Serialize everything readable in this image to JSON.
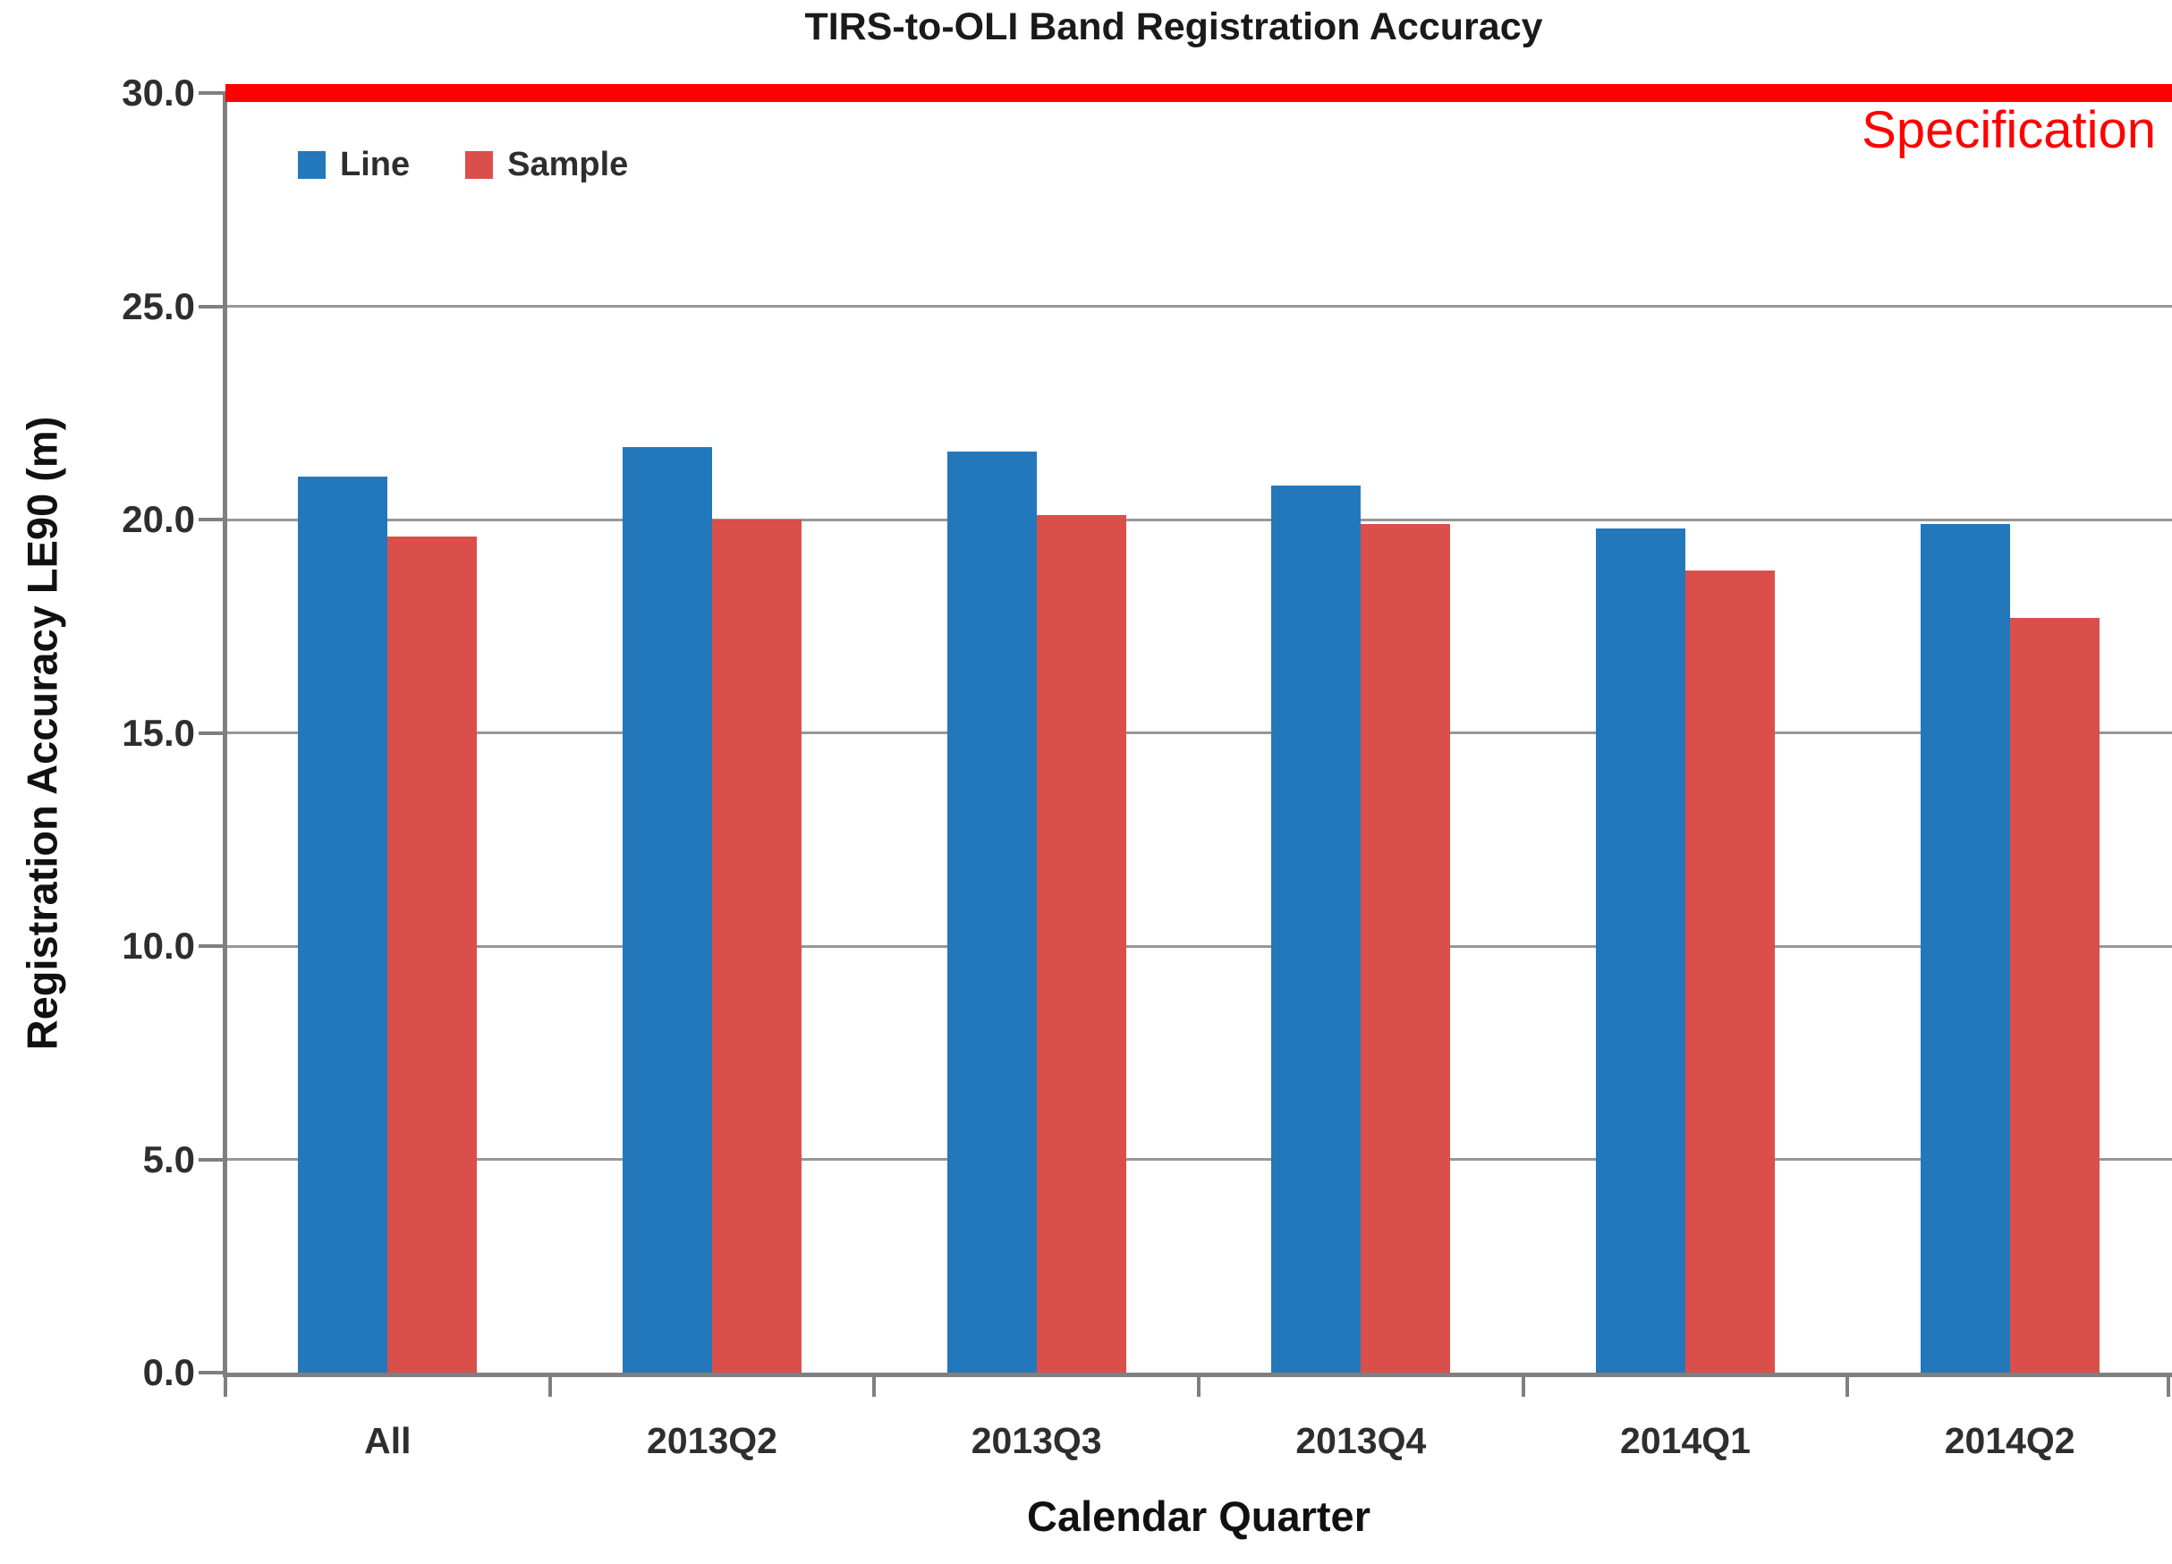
{
  "figure": {
    "title": "TIRS-to-OLI Band Registration Accuracy",
    "spec_label": "Specification"
  },
  "chart_data": {
    "type": "bar",
    "title": "TIRS-to-OLI Band Registration Accuracy",
    "xlabel": "Calendar Quarter",
    "ylabel": "Registration Accuracy LE90 (m)",
    "categories": [
      "All",
      "2013Q2",
      "2013Q3",
      "2013Q4",
      "2014Q1",
      "2014Q2"
    ],
    "series": [
      {
        "name": "Line",
        "color": "#2378bc",
        "values": [
          21.0,
          21.7,
          21.6,
          20.8,
          19.8,
          19.9
        ]
      },
      {
        "name": "Sample",
        "color": "#db4f4b",
        "values": [
          19.6,
          20.0,
          20.1,
          19.9,
          18.8,
          17.7
        ]
      }
    ],
    "ylim": [
      0,
      30
    ],
    "ytick_step": 5,
    "ytick_labels": [
      "0.0",
      "5.0",
      "10.0",
      "15.0",
      "20.0",
      "25.0",
      "30.0"
    ],
    "grid": "horizontal",
    "legend_position": "top-left",
    "reference_line": {
      "value": 30.0,
      "label": "Specification",
      "color": "#fe0000"
    }
  },
  "colors": {
    "axis": "#7f7f7f",
    "gridline": "#979797",
    "spec_red": "#fe0000"
  }
}
